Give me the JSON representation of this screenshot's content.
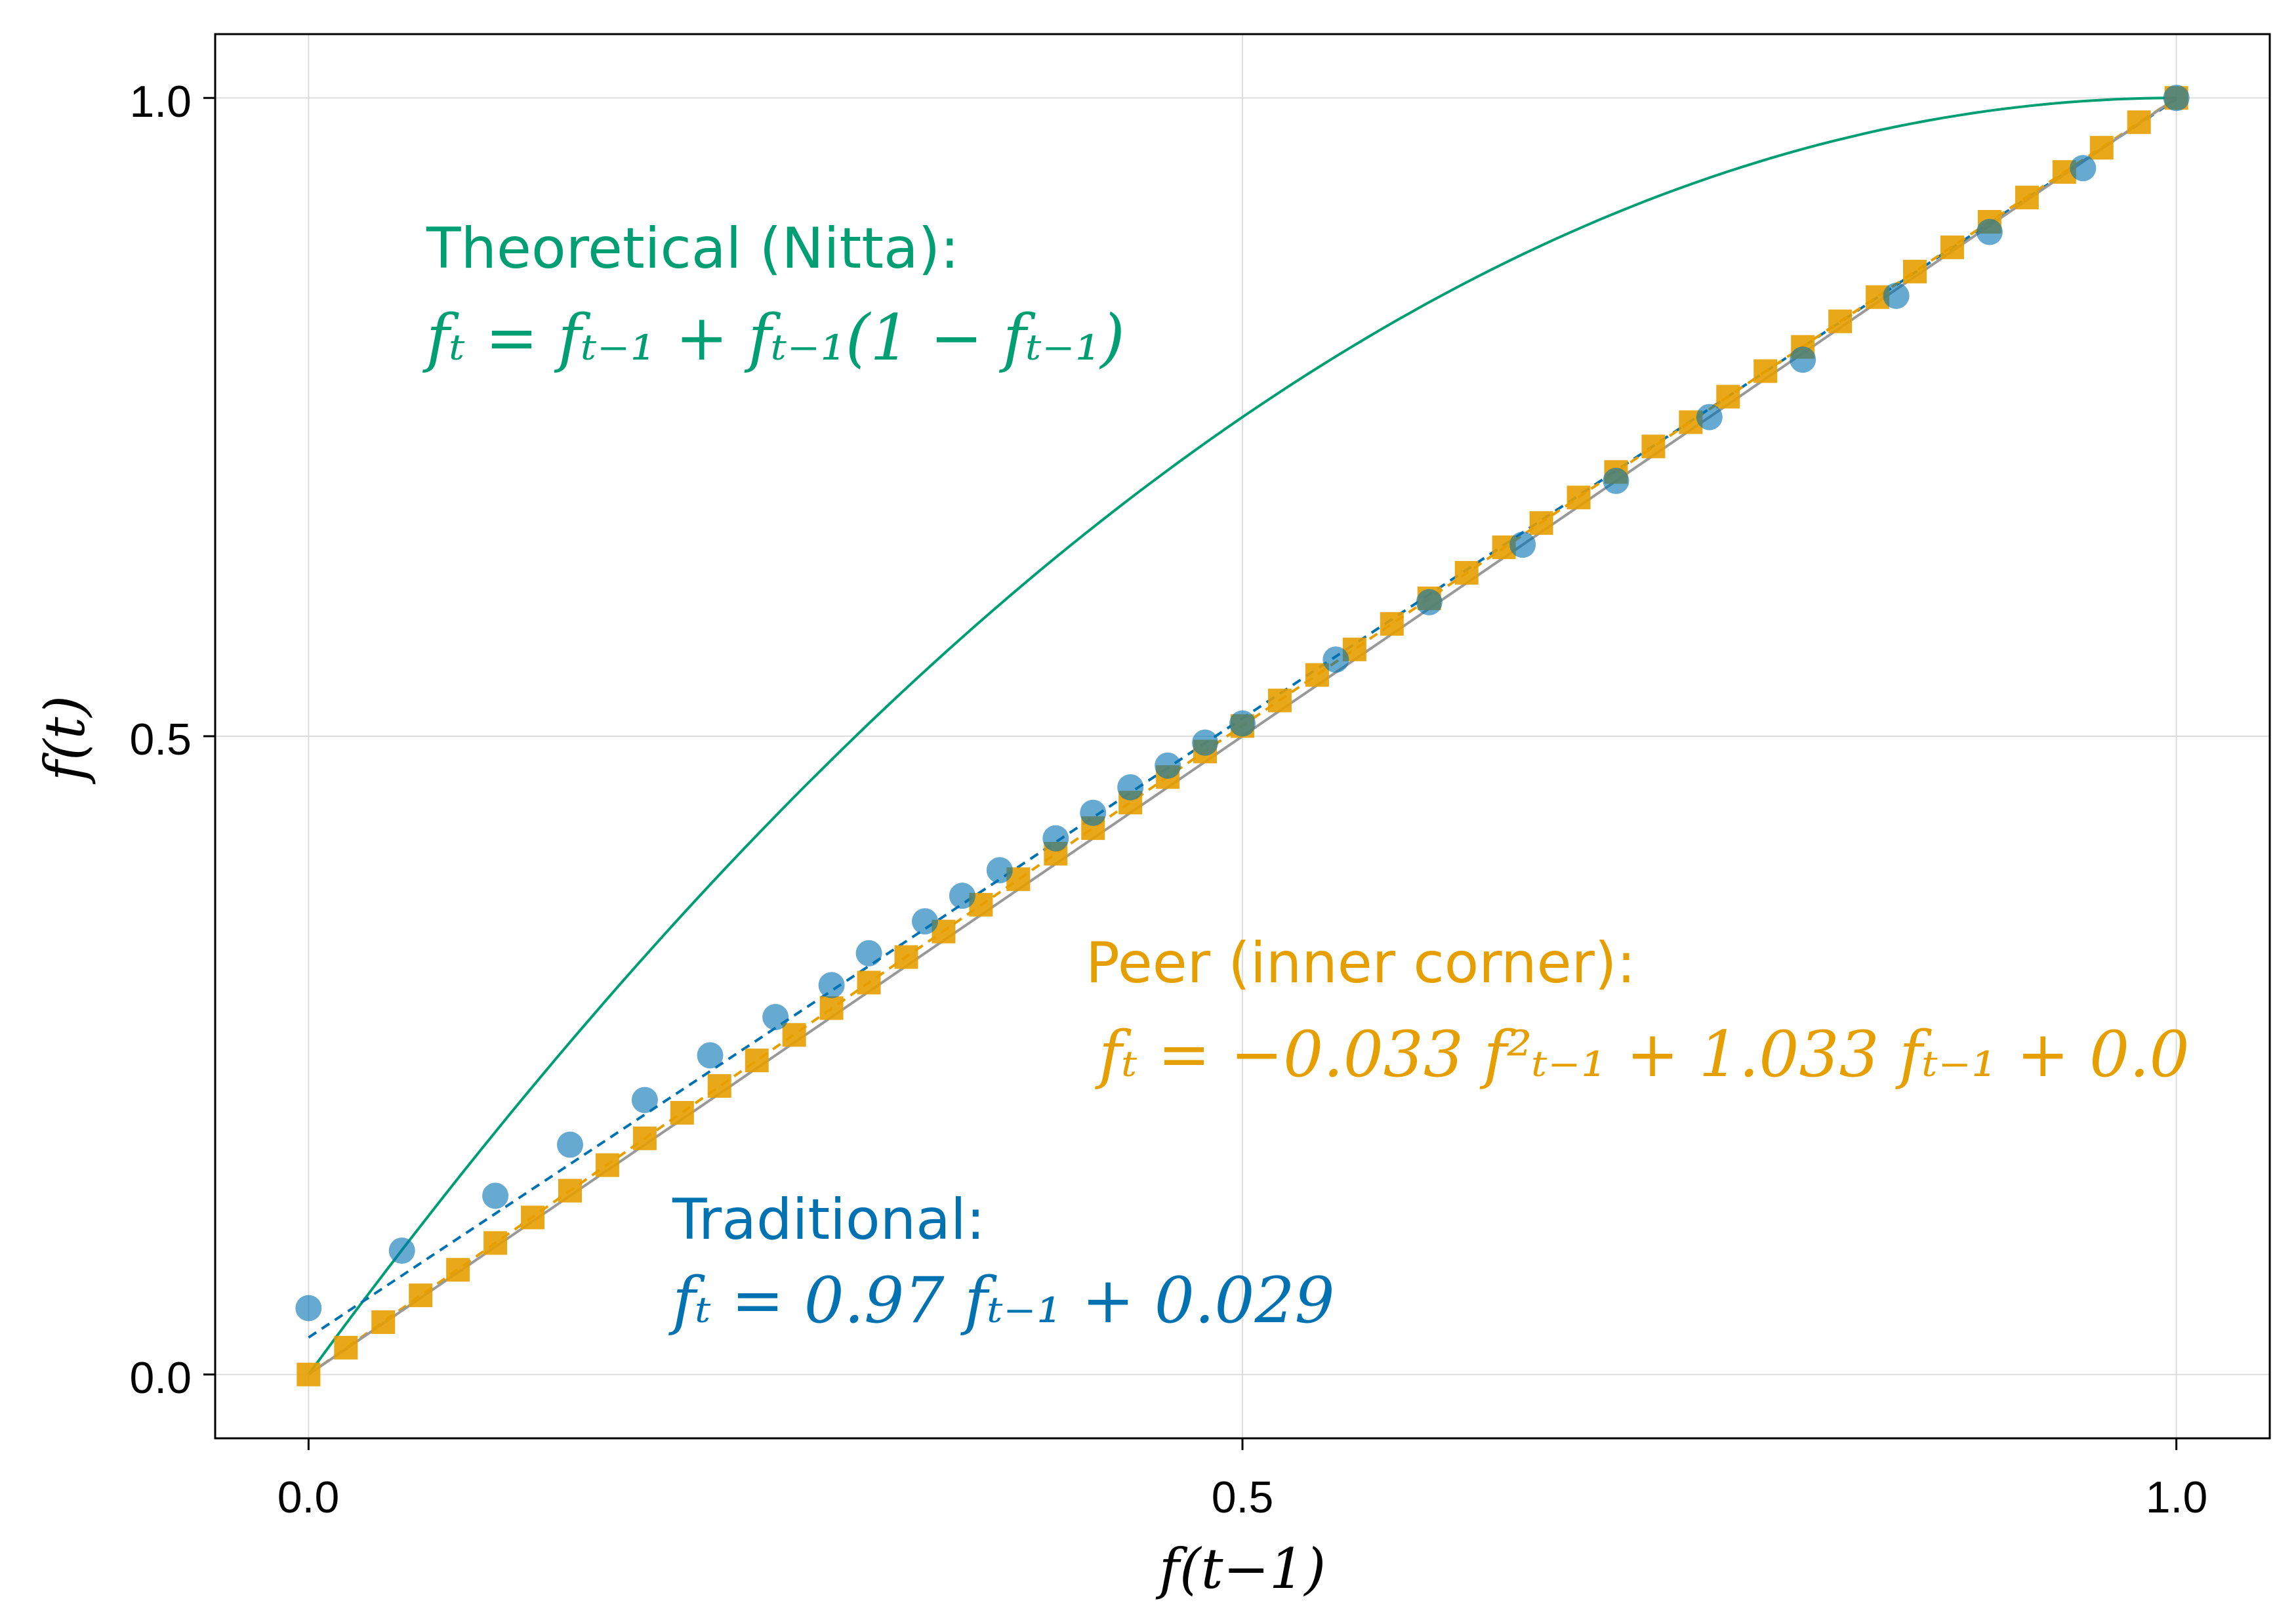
{
  "chart_data": {
    "type": "scatter",
    "xlabel": "f(t−1)",
    "ylabel": "f(t)",
    "xlim": [
      -0.05,
      1.05
    ],
    "ylim": [
      -0.05,
      1.05
    ],
    "x_ticks": [
      0.0,
      0.5,
      1.0
    ],
    "y_ticks": [
      0.0,
      0.5,
      1.0
    ],
    "x_tick_labels": [
      "0.0",
      "0.5",
      "1.0"
    ],
    "y_tick_labels": [
      "0.0",
      "0.5",
      "1.0"
    ],
    "grid": true,
    "colors": {
      "theoretical": "#009E73",
      "traditional": "#0072B2",
      "peer": "#E69F00",
      "identity": "#999999"
    },
    "annotations": {
      "theoretical_title": "Theoretical (Nitta):",
      "theoretical_eq": "fₜ = fₜ₋₁ + fₜ₋₁(1 − fₜ₋₁)",
      "peer_title": "Peer (inner corner):",
      "peer_eq": "fₜ = −0.033 f²ₜ₋₁ + 1.033 fₜ₋₁ + 0.0",
      "traditional_title": "Traditional:",
      "traditional_eq": "fₜ = 0.97 fₜ₋₁ + 0.029"
    },
    "fits": {
      "theoretical": {
        "a": -1.0,
        "b": 2.0,
        "c": 0.0
      },
      "traditional": {
        "a": 0.0,
        "b": 0.97,
        "c": 0.029
      },
      "peer": {
        "a": -0.033,
        "b": 1.033,
        "c": 0.0
      }
    },
    "series": [
      {
        "name": "Traditional",
        "marker": "circle",
        "x": [
          0.0,
          0.05,
          0.1,
          0.14,
          0.18,
          0.215,
          0.25,
          0.28,
          0.3,
          0.33,
          0.35,
          0.37,
          0.4,
          0.42,
          0.44,
          0.46,
          0.48,
          0.5,
          0.55,
          0.6,
          0.65,
          0.7,
          0.75,
          0.8,
          0.85,
          0.9,
          0.95,
          1.0
        ],
        "y": [
          0.052,
          0.097,
          0.14,
          0.18,
          0.215,
          0.25,
          0.28,
          0.305,
          0.33,
          0.355,
          0.375,
          0.395,
          0.42,
          0.44,
          0.46,
          0.477,
          0.495,
          0.51,
          0.56,
          0.605,
          0.65,
          0.7,
          0.75,
          0.795,
          0.845,
          0.895,
          0.945,
          1.0
        ]
      },
      {
        "name": "Peer (inner corner)",
        "marker": "square",
        "x": [
          0.0,
          0.02,
          0.04,
          0.06,
          0.08,
          0.1,
          0.12,
          0.14,
          0.16,
          0.18,
          0.2,
          0.22,
          0.24,
          0.26,
          0.28,
          0.3,
          0.32,
          0.34,
          0.36,
          0.38,
          0.4,
          0.42,
          0.44,
          0.46,
          0.48,
          0.5,
          0.52,
          0.54,
          0.56,
          0.58,
          0.6,
          0.62,
          0.64,
          0.66,
          0.68,
          0.7,
          0.72,
          0.74,
          0.76,
          0.78,
          0.8,
          0.82,
          0.84,
          0.86,
          0.88,
          0.9,
          0.92,
          0.94,
          0.96,
          0.98,
          1.0
        ],
        "y": [
          0.0,
          0.021,
          0.041,
          0.062,
          0.082,
          0.103,
          0.123,
          0.144,
          0.164,
          0.185,
          0.205,
          0.226,
          0.246,
          0.266,
          0.287,
          0.307,
          0.327,
          0.347,
          0.368,
          0.388,
          0.408,
          0.428,
          0.448,
          0.468,
          0.488,
          0.508,
          0.528,
          0.548,
          0.568,
          0.588,
          0.608,
          0.628,
          0.648,
          0.667,
          0.687,
          0.707,
          0.727,
          0.746,
          0.766,
          0.786,
          0.805,
          0.825,
          0.844,
          0.864,
          0.883,
          0.903,
          0.922,
          0.942,
          0.961,
          0.981,
          1.0
        ]
      }
    ]
  }
}
